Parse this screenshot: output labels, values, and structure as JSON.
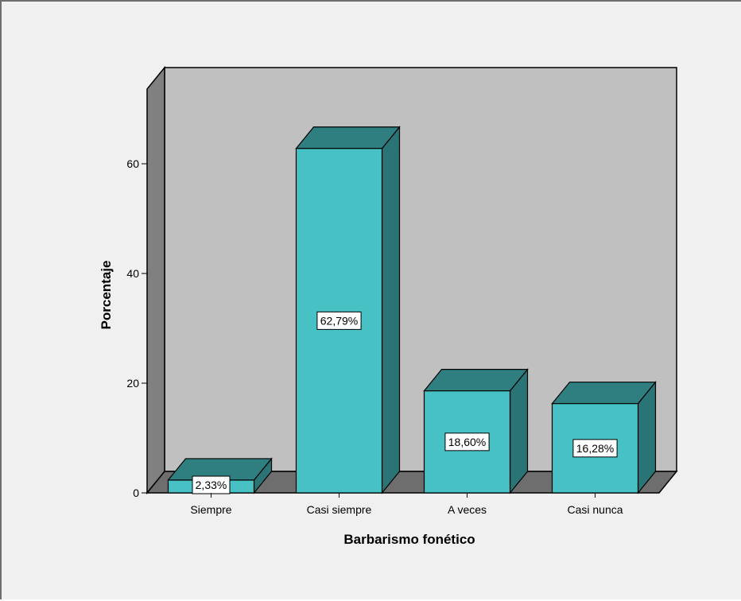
{
  "chart_data": {
    "type": "bar",
    "style": "3d",
    "categories": [
      "Siempre",
      "Casi siempre",
      "A veces",
      "Casi nunca"
    ],
    "values": [
      2.33,
      62.79,
      18.6,
      16.28
    ],
    "data_labels": [
      "2,33%",
      "62,79%",
      "18,60%",
      "16,28%"
    ],
    "xlabel": "Barbarismo fonético",
    "ylabel": "Porcentaje",
    "ylim": [
      0,
      70
    ],
    "yticks": [
      0,
      20,
      40,
      60
    ],
    "ytick_labels": [
      "0",
      "20",
      "40",
      "60"
    ],
    "grid": false,
    "colors": {
      "bar_front": "#48c1c4",
      "bar_top": "#2f7f80",
      "bar_side": "#2a7476",
      "back_wall": "#c0c0c0",
      "side_wall": "#808080",
      "floor": "#6e6e6e",
      "background": "#f0f0f0"
    }
  }
}
